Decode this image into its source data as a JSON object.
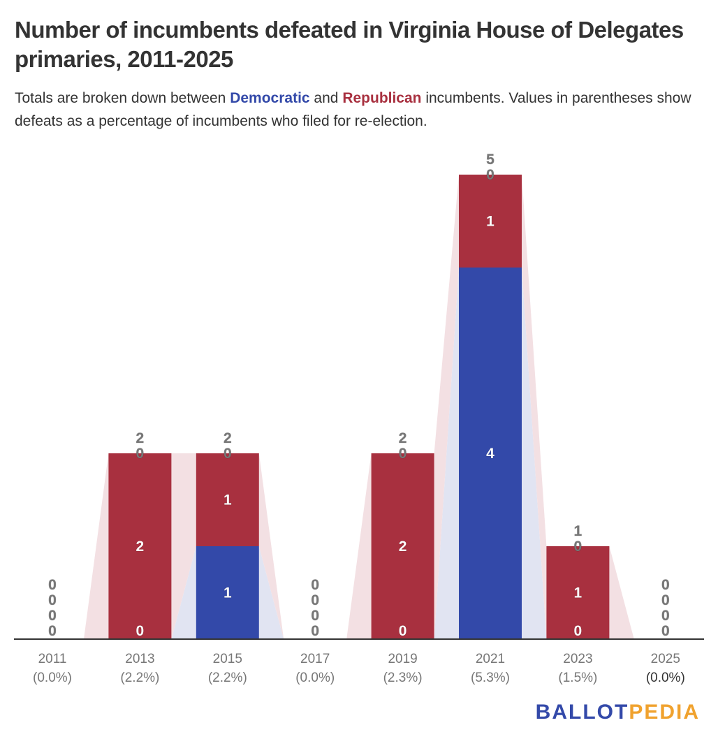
{
  "title": "Number of incumbents defeated in Virginia House of Delegates primaries, 2011-2025",
  "description": {
    "pre": "Totals are broken down between ",
    "dem": "Democratic",
    "mid": " and ",
    "rep": "Republican",
    "post": " incumbents. Values in parentheses show defeats as a percentage of incumbents who filed for re-election."
  },
  "logo": {
    "part1": "BALLOT",
    "part2": "PEDIA"
  },
  "colors": {
    "democratic": "#3349a9",
    "republican": "#a8303f",
    "dem_band": "#e1e4f2",
    "rep_band": "#f3e0e3"
  },
  "chart_data": {
    "type": "bar",
    "stacked": true,
    "categories": [
      "2011",
      "2013",
      "2015",
      "2017",
      "2019",
      "2021",
      "2023",
      "2025"
    ],
    "category_sublabels": [
      "(0.0%)",
      "(2.2%)",
      "(2.2%)",
      "(0.0%)",
      "(2.3%)",
      "(5.3%)",
      "(1.5%)",
      "(0.0%)"
    ],
    "series": [
      {
        "name": "Democratic",
        "values": [
          0,
          0,
          1,
          0,
          0,
          4,
          0,
          0
        ]
      },
      {
        "name": "Republican",
        "values": [
          0,
          2,
          1,
          0,
          2,
          1,
          1,
          0
        ]
      },
      {
        "values": [
          0,
          0,
          0,
          0,
          0,
          0,
          0,
          0
        ]
      }
    ],
    "totals": [
      0,
      2,
      2,
      0,
      2,
      5,
      1,
      0
    ],
    "ylim": [
      0,
      5
    ],
    "grid": false,
    "legend": "inline in description"
  }
}
